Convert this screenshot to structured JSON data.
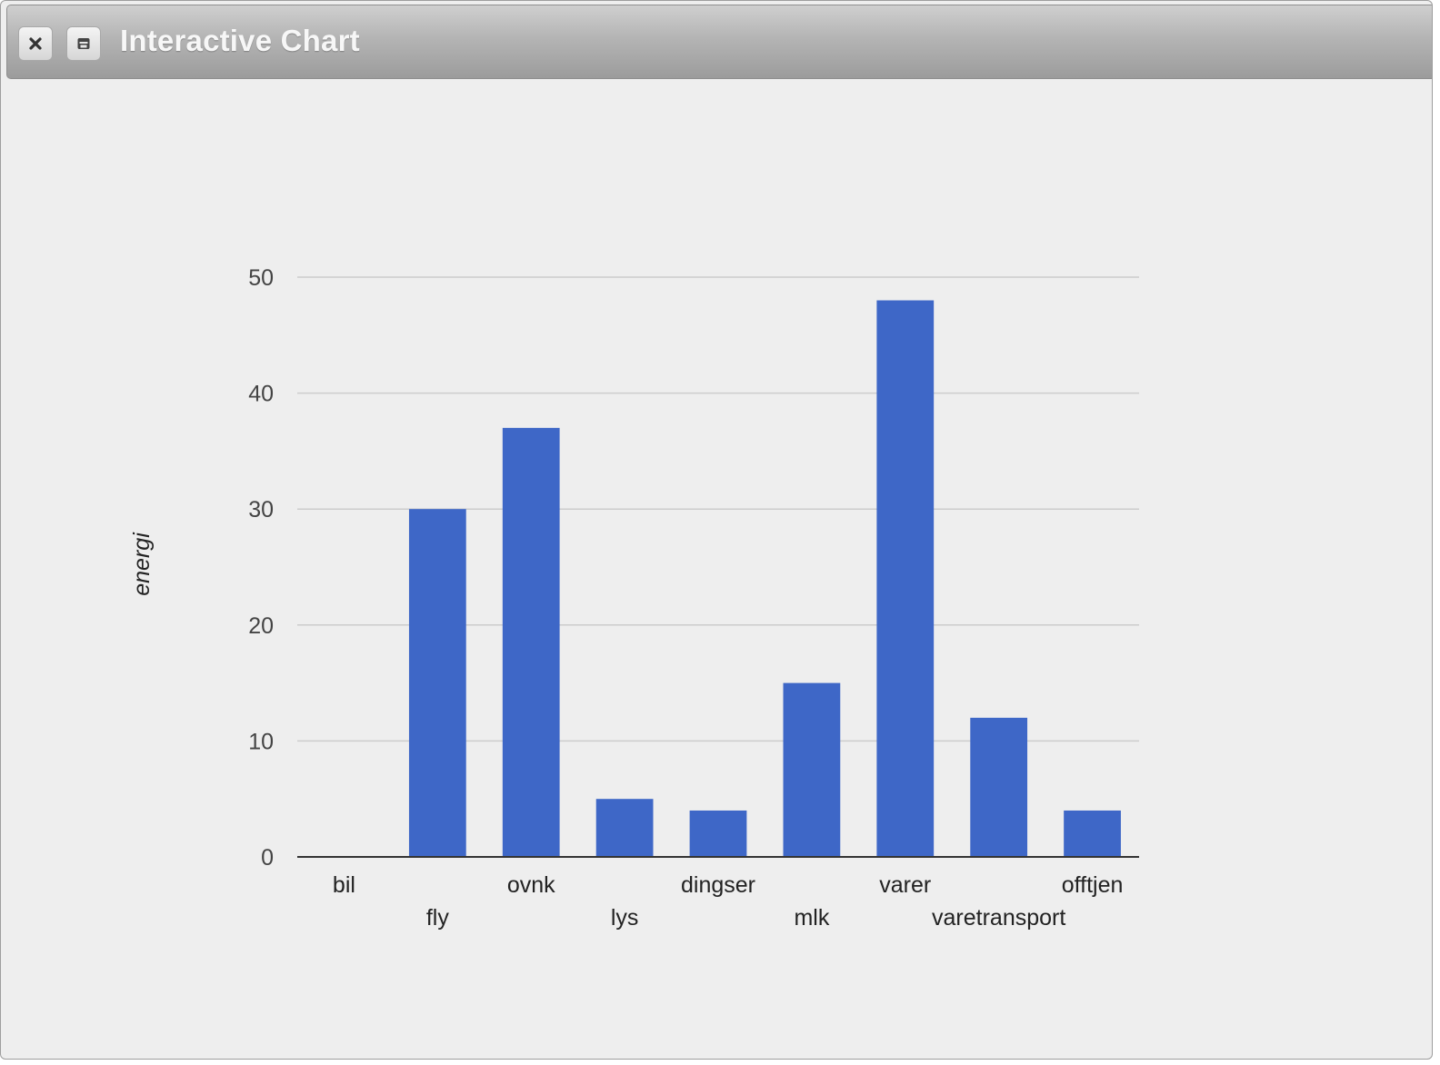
{
  "window": {
    "title": "Interactive Chart",
    "buttons": [
      {
        "name": "close",
        "icon": "close-icon"
      },
      {
        "name": "minimize",
        "icon": "window-icon"
      }
    ]
  },
  "colors": {
    "bar": "#3e67c7",
    "grid": "#cccccc",
    "axis": "#333333",
    "tick_text": "#444444",
    "label_text": "#222222",
    "background": "#eeeeee"
  },
  "chart_data": {
    "type": "bar",
    "title": "",
    "xlabel": "",
    "ylabel": "energi",
    "ylim": [
      0,
      50
    ],
    "yticks": [
      0,
      10,
      20,
      30,
      40,
      50
    ],
    "grid": true,
    "legend": "none",
    "categories": [
      "bil",
      "fly",
      "ovnk",
      "lys",
      "dingser",
      "mlk",
      "varer",
      "varetransport",
      "offtjen"
    ],
    "values": [
      0,
      30,
      37,
      5,
      4,
      15,
      48,
      12,
      4
    ]
  }
}
